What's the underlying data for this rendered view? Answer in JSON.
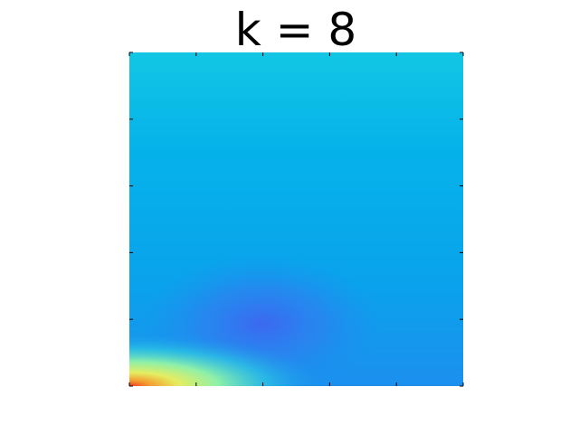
{
  "chart_data": {
    "type": "heatmap",
    "title": "k = 8"
  }
}
